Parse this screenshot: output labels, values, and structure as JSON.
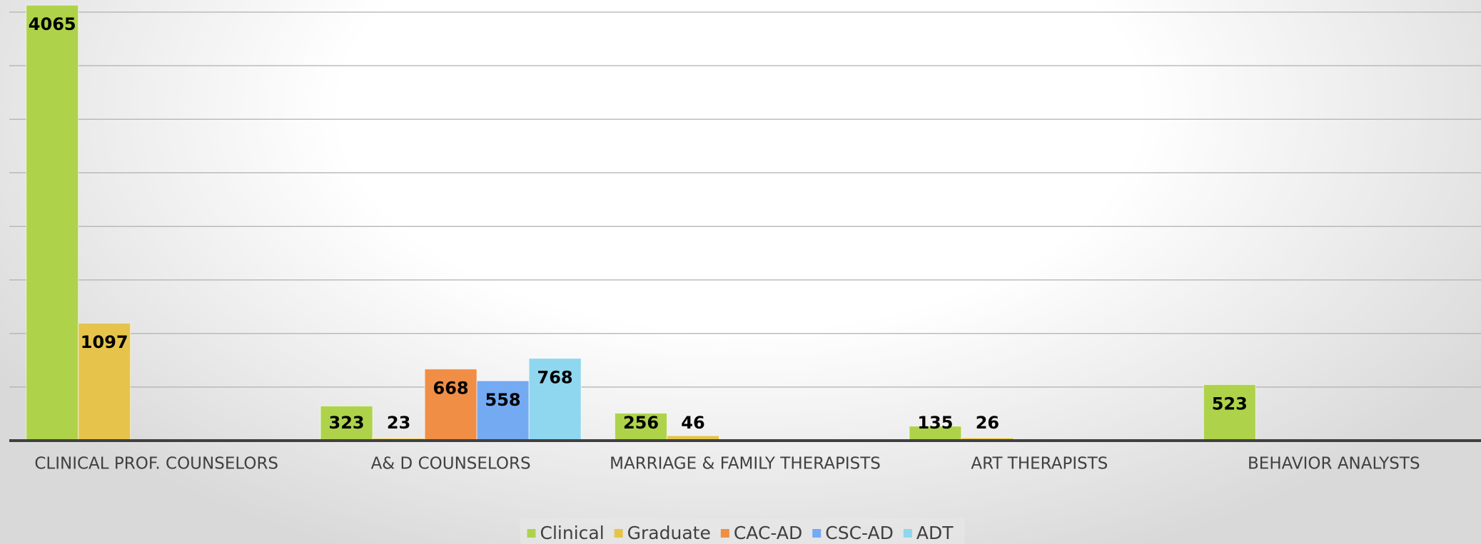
{
  "chart_data": {
    "type": "bar",
    "categories": [
      "CLINICAL PROF. COUNSELORS",
      "A& D COUNSELORS",
      "MARRIAGE & FAMILY THERAPISTS",
      "ART THERAPISTS",
      "BEHAVIOR ANALYSTS"
    ],
    "series": [
      {
        "name": "Clinical",
        "color": "#aed34b",
        "values": [
          4065,
          323,
          256,
          135,
          523
        ]
      },
      {
        "name": "Graduate",
        "color": "#e6c44c",
        "values": [
          1097,
          23,
          46,
          26,
          null
        ]
      },
      {
        "name": "CAC-AD",
        "color": "#f08e46",
        "values": [
          null,
          668,
          null,
          null,
          null
        ]
      },
      {
        "name": "CSC-AD",
        "color": "#74aaf2",
        "values": [
          null,
          558,
          null,
          null,
          null
        ]
      },
      {
        "name": "ADT",
        "color": "#8fd7ef",
        "values": [
          null,
          768,
          null,
          null,
          null
        ]
      }
    ],
    "ylim": [
      0,
      4000
    ],
    "yticks": [
      0,
      500,
      1000,
      1500,
      2000,
      2500,
      3000,
      3500,
      4000
    ],
    "grid": true,
    "legend": "bottom"
  }
}
